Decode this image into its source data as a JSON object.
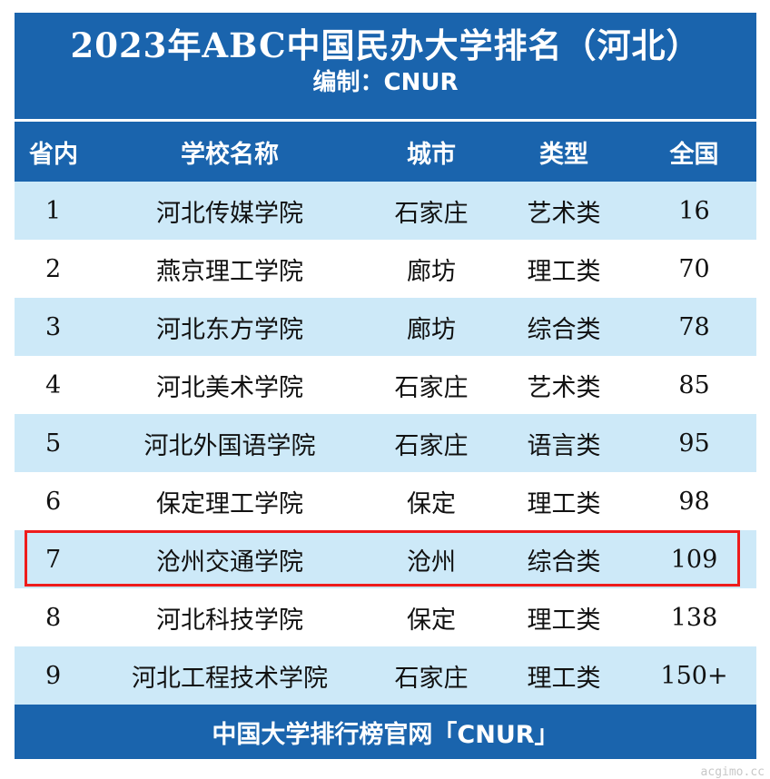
{
  "title": "2023年ABC中国民办大学排名（河北）",
  "subtitle": "编制：CNUR",
  "columns": [
    "省内",
    "学校名称",
    "城市",
    "类型",
    "全国"
  ],
  "rows": [
    {
      "rank": "1",
      "name": "河北传媒学院",
      "city": "石家庄",
      "type": "艺术类",
      "national": "16"
    },
    {
      "rank": "2",
      "name": "燕京理工学院",
      "city": "廊坊",
      "type": "理工类",
      "national": "70"
    },
    {
      "rank": "3",
      "name": "河北东方学院",
      "city": "廊坊",
      "type": "综合类",
      "national": "78"
    },
    {
      "rank": "4",
      "name": "河北美术学院",
      "city": "石家庄",
      "type": "艺术类",
      "national": "85"
    },
    {
      "rank": "5",
      "name": "河北外国语学院",
      "city": "石家庄",
      "type": "语言类",
      "national": "95"
    },
    {
      "rank": "6",
      "name": "保定理工学院",
      "city": "保定",
      "type": "理工类",
      "national": "98"
    },
    {
      "rank": "7",
      "name": "沧州交通学院",
      "city": "沧州",
      "type": "综合类",
      "national": "109"
    },
    {
      "rank": "8",
      "name": "河北科技学院",
      "city": "保定",
      "type": "理工类",
      "national": "138"
    },
    {
      "rank": "9",
      "name": "河北工程技术学院",
      "city": "石家庄",
      "type": "理工类",
      "national": "150+"
    }
  ],
  "highlighted_row": "7",
  "footer": "中国大学排行榜官网「CNUR」",
  "watermark": "acgimo.cc",
  "colors": {
    "header_bg": "#1a64ad",
    "alt_row_bg": "#cde9f8",
    "highlight_border": "#ee1c1c"
  }
}
